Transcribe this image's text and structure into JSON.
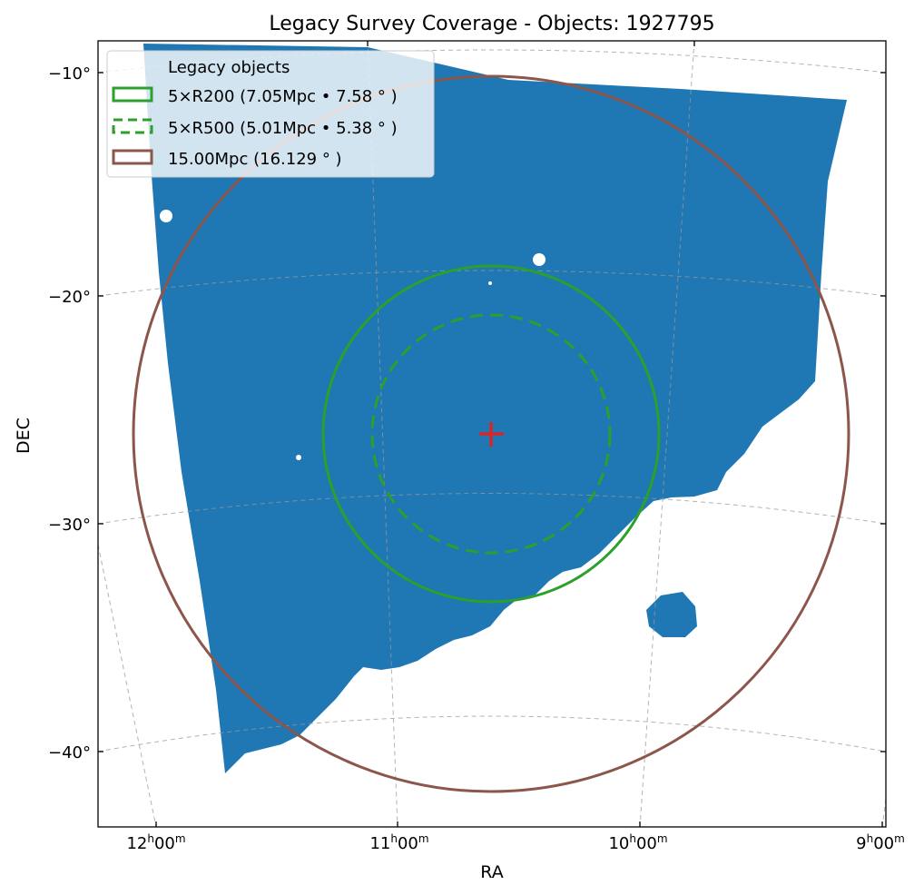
{
  "chart_data": {
    "type": "scatter",
    "title": "Legacy Survey Coverage - Objects: 1927795",
    "xlabel": "RA",
    "ylabel": "DEC",
    "x_ticks": [
      {
        "value_h": 12,
        "label": "12h00m"
      },
      {
        "value_h": 11,
        "label": "11h00m"
      },
      {
        "value_h": 10,
        "label": "10h00m"
      },
      {
        "value_h": 9,
        "label": "9h00m"
      }
    ],
    "y_ticks": [
      {
        "value": -10,
        "label": "−10°"
      },
      {
        "value": -20,
        "label": "−20°"
      },
      {
        "value": -30,
        "label": "−30°"
      },
      {
        "value": -40,
        "label": "−40°"
      }
    ],
    "grid": true,
    "legend_position": "top-left",
    "center": {
      "ra_h": 10.6,
      "dec": -26.1
    },
    "series": [
      {
        "name": "Legacy objects",
        "kind": "points",
        "color": "#1f77b4",
        "count": 1927795
      },
      {
        "name": "5×R200 (7.05Mpc • 7.58°)",
        "kind": "circle",
        "radius_deg": 7.58,
        "style": "solid",
        "color": "#2ca02c"
      },
      {
        "name": "5×R500 (5.01Mpc • 5.38°)",
        "kind": "circle",
        "radius_deg": 5.38,
        "style": "dashed",
        "color": "#2ca02c"
      },
      {
        "name": "15.00Mpc (16.129°)",
        "kind": "circle",
        "radius_deg": 16.129,
        "style": "solid",
        "color": "#8c564b"
      }
    ],
    "center_marker": {
      "symbol": "+",
      "color": "#d62728"
    }
  },
  "legend": {
    "items": [
      {
        "label": "Legacy objects"
      },
      {
        "label": "5×R200 (7.05Mpc • 7.58 ° )"
      },
      {
        "label": "5×R500 (5.01Mpc • 5.38 ° )"
      },
      {
        "label": "15.00Mpc (16.129 ° )"
      }
    ]
  },
  "ra_tick_text": [
    {
      "h": "12",
      "m": "00"
    },
    {
      "h": "11",
      "m": "00"
    },
    {
      "h": "10",
      "m": "00"
    },
    {
      "h": "9",
      "m": "00"
    }
  ]
}
